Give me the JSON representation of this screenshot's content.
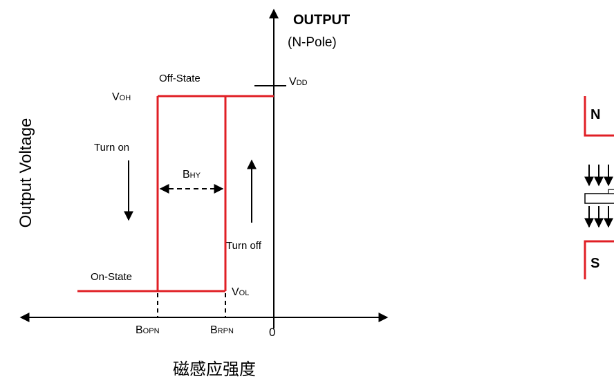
{
  "colors": {
    "curve": "#e01f25",
    "ink": "#000000",
    "background": "#ffffff"
  },
  "labels": {
    "output_title": "OUTPUT",
    "output_pole": "(N-Pole)",
    "off_state": "Off-State",
    "on_state": "On-State",
    "turn_on": "Turn on",
    "turn_off": "Turn off",
    "voh_main": "V",
    "voh_sub": "OH",
    "vol_main": "V",
    "vol_sub": "OL",
    "vdd_main": "V",
    "vdd_sub": "DD",
    "bhy_main": "B",
    "bhy_sub": "HY",
    "bopn_main": "B",
    "bopn_sub": "OPN",
    "brpn_main": "B",
    "brpn_sub": "RPN",
    "zero": "0",
    "y_axis": "Output Voltage",
    "x_axis": "磁感应强度"
  },
  "magnet": {
    "north_label": "N",
    "south_label": "S",
    "icons": [
      "down-arrow-icon",
      "down-arrow-icon",
      "down-arrow-icon",
      "down-arrow-icon",
      "down-arrow-icon",
      "down-arrow-icon"
    ]
  }
}
